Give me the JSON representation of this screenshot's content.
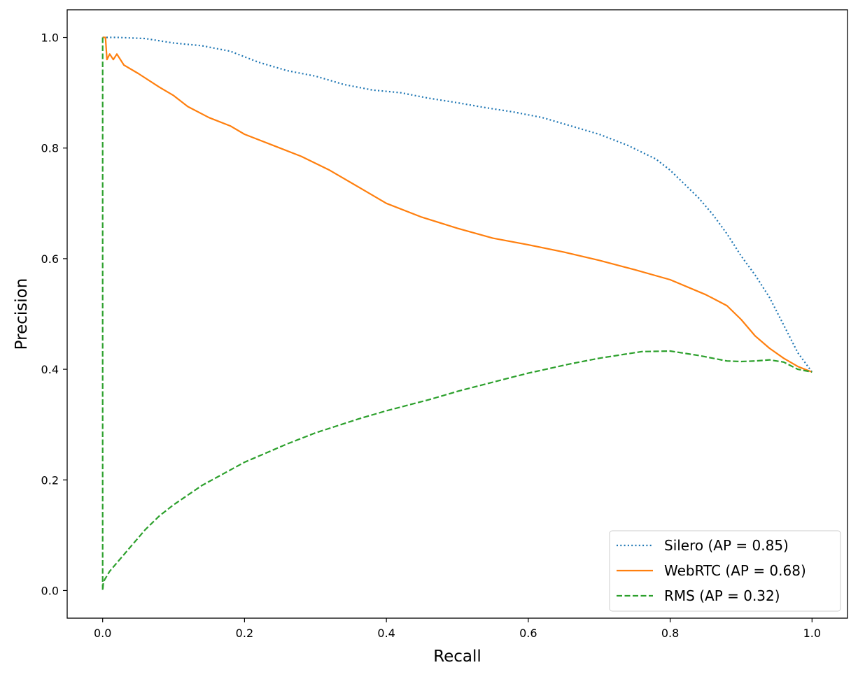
{
  "chart_data": {
    "type": "line",
    "title": "",
    "xlabel": "Recall",
    "ylabel": "Precision",
    "xlim": [
      -0.05,
      1.05
    ],
    "ylim": [
      -0.05,
      1.05
    ],
    "xticks": [
      "0.0",
      "0.2",
      "0.4",
      "0.6",
      "0.8",
      "1.0"
    ],
    "yticks": [
      "0.0",
      "0.2",
      "0.4",
      "0.6",
      "0.8",
      "1.0"
    ],
    "grid": false,
    "legend_position": "bottom-right",
    "series": [
      {
        "name": "Silero (AP = 0.85)",
        "color": "#1f77b4",
        "style": "dotted",
        "x": [
          0.0,
          0.005,
          0.02,
          0.06,
          0.1,
          0.14,
          0.18,
          0.22,
          0.26,
          0.3,
          0.34,
          0.38,
          0.42,
          0.46,
          0.5,
          0.54,
          0.58,
          0.62,
          0.66,
          0.7,
          0.74,
          0.78,
          0.8,
          0.82,
          0.84,
          0.86,
          0.88,
          0.9,
          0.92,
          0.94,
          0.96,
          0.98,
          1.0
        ],
        "y": [
          1.0,
          1.0,
          1.0,
          0.998,
          0.99,
          0.985,
          0.975,
          0.955,
          0.94,
          0.93,
          0.915,
          0.905,
          0.9,
          0.89,
          0.882,
          0.873,
          0.865,
          0.855,
          0.84,
          0.825,
          0.805,
          0.78,
          0.76,
          0.735,
          0.71,
          0.68,
          0.645,
          0.605,
          0.57,
          0.53,
          0.48,
          0.43,
          0.395
        ]
      },
      {
        "name": "WebRTC (AP = 0.68)",
        "color": "#ff7f0e",
        "style": "solid",
        "x": [
          0.0,
          0.004,
          0.006,
          0.01,
          0.015,
          0.02,
          0.03,
          0.05,
          0.08,
          0.1,
          0.12,
          0.15,
          0.18,
          0.2,
          0.24,
          0.28,
          0.32,
          0.36,
          0.4,
          0.45,
          0.5,
          0.55,
          0.6,
          0.65,
          0.7,
          0.75,
          0.8,
          0.85,
          0.88,
          0.9,
          0.92,
          0.94,
          0.96,
          0.98,
          1.0
        ],
        "y": [
          1.0,
          1.0,
          0.96,
          0.97,
          0.96,
          0.97,
          0.95,
          0.935,
          0.91,
          0.895,
          0.875,
          0.855,
          0.84,
          0.825,
          0.805,
          0.785,
          0.76,
          0.73,
          0.7,
          0.675,
          0.655,
          0.637,
          0.625,
          0.612,
          0.597,
          0.58,
          0.562,
          0.535,
          0.515,
          0.49,
          0.46,
          0.438,
          0.42,
          0.405,
          0.395
        ]
      },
      {
        "name": "RMS (AP = 0.32)",
        "color": "#2ca02c",
        "style": "dashed",
        "x": [
          0.0,
          0.0,
          0.0,
          0.0,
          0.001,
          0.003,
          0.01,
          0.02,
          0.04,
          0.06,
          0.08,
          0.1,
          0.14,
          0.2,
          0.26,
          0.3,
          0.36,
          0.4,
          0.46,
          0.5,
          0.56,
          0.6,
          0.66,
          0.7,
          0.76,
          0.8,
          0.84,
          0.88,
          0.9,
          0.92,
          0.94,
          0.96,
          0.98,
          1.0
        ],
        "y": [
          1.0,
          0.1,
          0.01,
          0.0,
          0.015,
          0.02,
          0.035,
          0.05,
          0.08,
          0.11,
          0.135,
          0.155,
          0.19,
          0.232,
          0.265,
          0.285,
          0.31,
          0.325,
          0.345,
          0.36,
          0.38,
          0.393,
          0.41,
          0.42,
          0.432,
          0.433,
          0.425,
          0.415,
          0.414,
          0.415,
          0.417,
          0.413,
          0.4,
          0.395
        ]
      }
    ]
  }
}
